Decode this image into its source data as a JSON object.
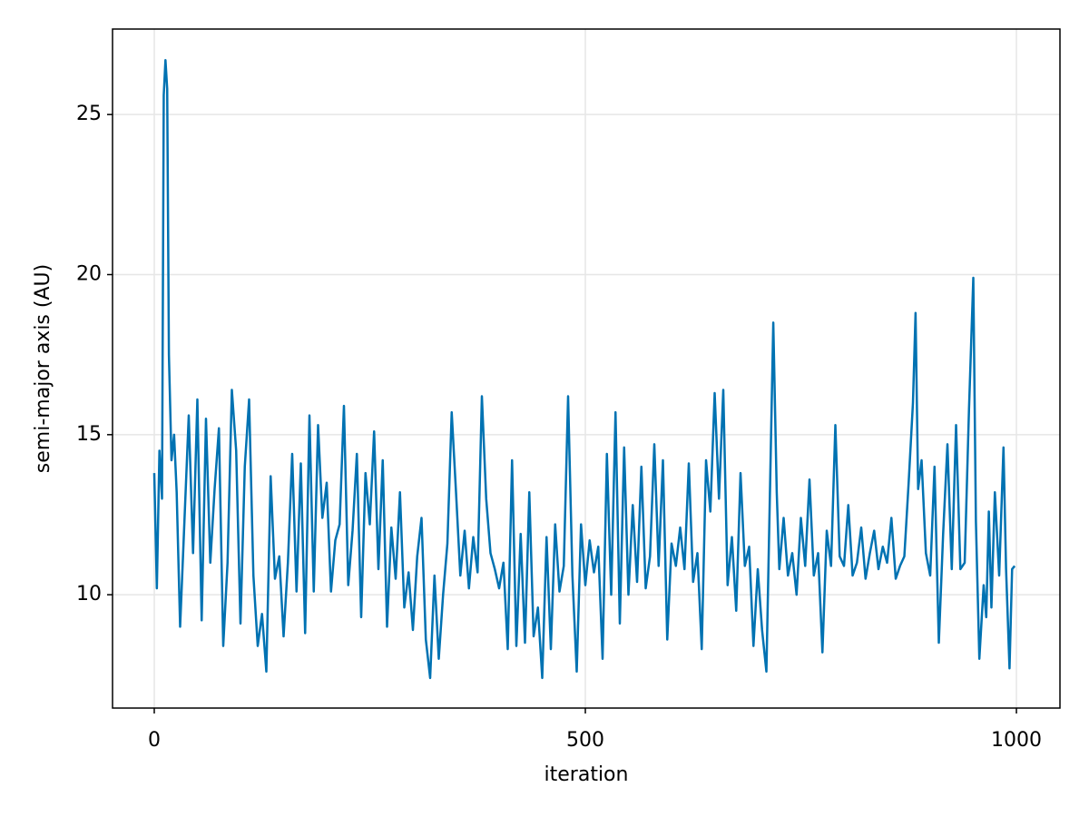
{
  "chart_data": {
    "type": "line",
    "x_label": "iteration",
    "y_label": "semi-major axis (AU)",
    "xlim": [
      -48.4,
      1050.5
    ],
    "xticks": [
      0,
      500,
      1000
    ],
    "ylim": [
      6.46,
      27.67
    ],
    "yticks": [
      10,
      15,
      20,
      25
    ],
    "grid": true,
    "color": "#0072b2",
    "x": [
      0,
      3,
      6,
      9,
      11,
      13,
      15,
      17,
      20,
      23,
      26,
      30,
      35,
      40,
      45,
      50,
      55,
      60,
      65,
      70,
      75,
      80,
      85,
      90,
      95,
      100,
      105,
      110,
      115,
      120,
      125,
      130,
      135,
      140,
      145,
      150,
      155,
      160,
      165,
      170,
      175,
      180,
      185,
      190,
      195,
      200,
      205,
      210,
      215,
      220,
      225,
      230,
      235,
      240,
      245,
      250,
      255,
      260,
      265,
      270,
      275,
      280,
      285,
      290,
      295,
      300,
      305,
      310,
      315,
      320,
      325,
      330,
      335,
      340,
      345,
      350,
      355,
      360,
      365,
      370,
      375,
      380,
      385,
      390,
      395,
      400,
      405,
      410,
      415,
      420,
      425,
      430,
      435,
      440,
      445,
      450,
      455,
      460,
      465,
      470,
      475,
      480,
      485,
      490,
      495,
      500,
      505,
      510,
      515,
      520,
      525,
      530,
      535,
      540,
      545,
      550,
      555,
      560,
      565,
      570,
      575,
      580,
      585,
      590,
      595,
      600,
      605,
      610,
      615,
      620,
      625,
      630,
      635,
      640,
      645,
      650,
      655,
      660,
      665,
      670,
      675,
      680,
      685,
      690,
      695,
      700,
      705,
      710,
      715,
      718,
      722,
      725,
      730,
      735,
      740,
      745,
      750,
      755,
      760,
      765,
      770,
      775,
      780,
      785,
      790,
      795,
      800,
      805,
      810,
      815,
      820,
      825,
      830,
      835,
      840,
      845,
      850,
      855,
      860,
      865,
      870,
      875,
      880,
      883,
      886,
      890,
      895,
      900,
      905,
      910,
      915,
      920,
      925,
      930,
      935,
      940,
      945,
      950,
      953,
      957,
      962,
      965,
      968,
      971,
      975,
      980,
      985,
      988,
      992,
      995,
      998
    ],
    "values": [
      13.8,
      10.2,
      14.5,
      13.0,
      25.6,
      26.7,
      25.8,
      17.5,
      14.2,
      15.0,
      13.2,
      9.0,
      12.3,
      15.6,
      11.3,
      16.1,
      9.2,
      15.5,
      11.0,
      13.3,
      15.2,
      8.4,
      11.0,
      16.4,
      14.5,
      9.1,
      14.0,
      16.1,
      10.6,
      8.4,
      9.4,
      7.6,
      13.7,
      10.5,
      11.2,
      8.7,
      11.0,
      14.4,
      10.1,
      14.1,
      8.8,
      15.6,
      10.1,
      15.3,
      12.4,
      13.5,
      10.1,
      11.7,
      12.2,
      15.9,
      10.3,
      12.0,
      14.4,
      9.3,
      13.8,
      12.2,
      15.1,
      10.8,
      14.2,
      9.0,
      12.1,
      10.5,
      13.2,
      9.6,
      10.7,
      8.9,
      11.2,
      12.4,
      8.6,
      7.4,
      10.6,
      8.0,
      10.0,
      11.6,
      15.7,
      13.2,
      10.6,
      12.0,
      10.2,
      11.8,
      10.7,
      16.2,
      13.0,
      11.3,
      10.8,
      10.2,
      11.0,
      8.3,
      14.2,
      8.4,
      11.9,
      8.5,
      13.2,
      8.7,
      9.6,
      7.4,
      11.8,
      8.3,
      12.2,
      10.1,
      10.9,
      16.2,
      10.6,
      7.6,
      12.2,
      10.3,
      11.7,
      10.7,
      11.5,
      8.0,
      14.4,
      10.0,
      15.7,
      9.1,
      14.6,
      10.0,
      12.8,
      10.4,
      14.0,
      10.2,
      11.2,
      14.7,
      10.9,
      14.2,
      8.6,
      11.6,
      10.9,
      12.1,
      10.8,
      14.1,
      10.4,
      11.3,
      8.3,
      14.2,
      12.6,
      16.3,
      13.0,
      16.4,
      10.3,
      11.8,
      9.5,
      13.8,
      10.9,
      11.5,
      8.4,
      10.8,
      8.9,
      7.6,
      14.4,
      18.5,
      13.2,
      10.8,
      12.4,
      10.6,
      11.3,
      10.0,
      12.4,
      10.9,
      13.6,
      10.6,
      11.3,
      8.2,
      12.0,
      10.9,
      15.3,
      11.2,
      10.9,
      12.8,
      10.6,
      11.0,
      12.1,
      10.5,
      11.3,
      12.0,
      10.8,
      11.5,
      11.0,
      12.4,
      10.5,
      10.9,
      11.2,
      13.5,
      16.0,
      18.8,
      13.3,
      14.2,
      11.3,
      10.6,
      14.0,
      8.5,
      11.9,
      14.7,
      10.8,
      15.3,
      10.8,
      11.0,
      15.8,
      19.9,
      12.3,
      8.0,
      10.3,
      9.3,
      12.6,
      9.6,
      13.2,
      10.6,
      14.6,
      10.8,
      7.7,
      10.8,
      10.9
    ]
  }
}
